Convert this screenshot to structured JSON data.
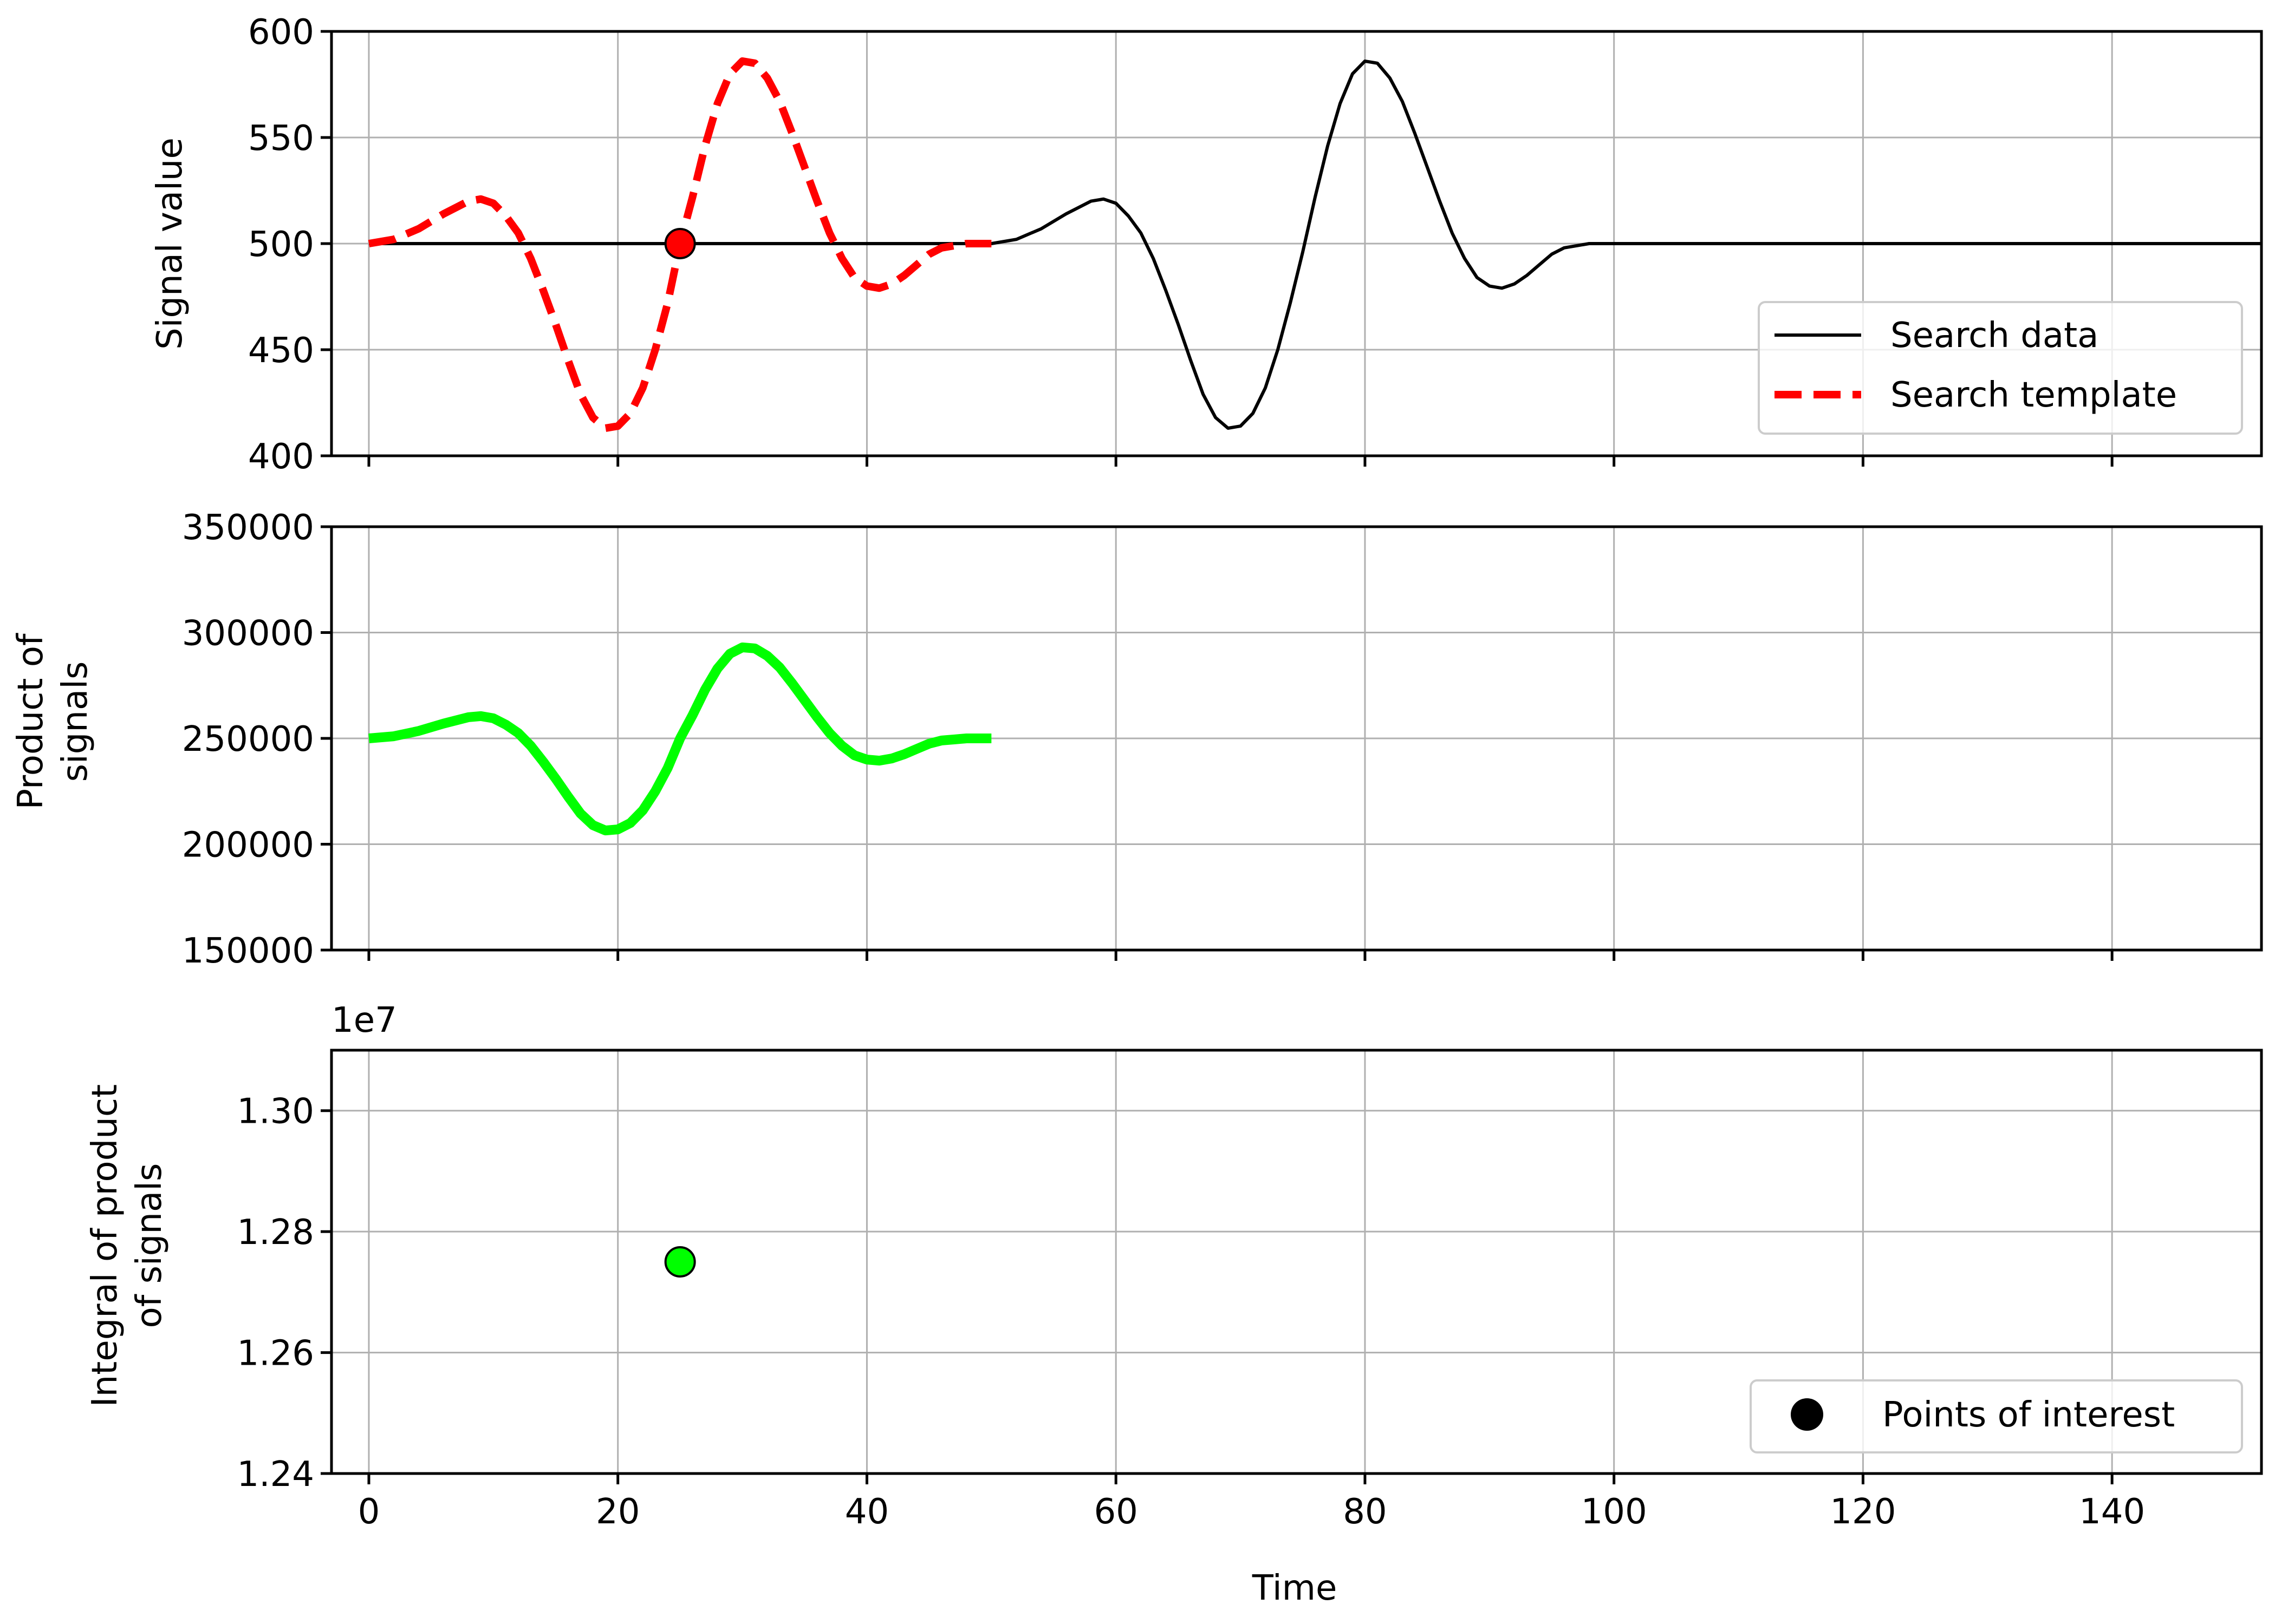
{
  "chart_data": [
    {
      "type": "line",
      "ylabel": "Signal value",
      "xlim": [
        -3,
        152
      ],
      "ylim": [
        400,
        600
      ],
      "yticks": [
        400,
        450,
        500,
        550,
        600
      ],
      "xticks": [
        0,
        20,
        40,
        60,
        80,
        100,
        120,
        140
      ],
      "grid": true,
      "legend_position": "lower-right",
      "series": [
        {
          "name": "Search data",
          "color": "#000000",
          "style": "solid",
          "x": [
            0,
            10,
            20,
            30,
            40,
            45,
            50,
            52,
            54,
            56,
            58,
            59,
            60,
            61,
            62,
            63,
            64,
            65,
            66,
            67,
            68,
            69,
            70,
            71,
            72,
            73,
            74,
            75,
            76,
            77,
            78,
            79,
            80,
            81,
            82,
            83,
            84,
            85,
            86,
            87,
            88,
            89,
            90,
            91,
            92,
            93,
            94,
            95,
            96,
            97,
            98,
            99,
            100,
            110,
            120,
            130,
            140,
            152
          ],
          "y": [
            500,
            500,
            500,
            500,
            500,
            500,
            500,
            502,
            507,
            514,
            520,
            521,
            519,
            513,
            505,
            493,
            478,
            462,
            445,
            429,
            418,
            413,
            414,
            420,
            432,
            450,
            472,
            496,
            522,
            546,
            566,
            580,
            586,
            585,
            578,
            567,
            552,
            536,
            520,
            505,
            493,
            484,
            480,
            479,
            481,
            485,
            490,
            495,
            498,
            499,
            500,
            500,
            500,
            500,
            500,
            500,
            500,
            500
          ]
        },
        {
          "name": "Search template",
          "color": "#ff0000",
          "style": "dashed",
          "x": [
            0,
            2,
            4,
            6,
            8,
            9,
            10,
            11,
            12,
            13,
            14,
            15,
            16,
            17,
            18,
            19,
            20,
            21,
            22,
            23,
            24,
            25,
            26,
            27,
            28,
            29,
            30,
            31,
            32,
            33,
            34,
            35,
            36,
            37,
            38,
            39,
            40,
            41,
            42,
            43,
            44,
            45,
            46,
            47,
            48,
            49,
            50
          ],
          "y": [
            500,
            502,
            507,
            514,
            520,
            521,
            519,
            513,
            505,
            493,
            478,
            462,
            445,
            429,
            418,
            413,
            414,
            420,
            432,
            450,
            472,
            500,
            522,
            546,
            566,
            580,
            586,
            585,
            578,
            567,
            552,
            536,
            520,
            505,
            493,
            484,
            480,
            479,
            481,
            485,
            490,
            495,
            498,
            499,
            500,
            500,
            500
          ]
        }
      ],
      "markers": [
        {
          "x": 25,
          "y": 500,
          "color": "#ff0000",
          "edge": "#000000"
        }
      ]
    },
    {
      "type": "line",
      "ylabel": "Product of signals",
      "xlim": [
        -3,
        152
      ],
      "ylim": [
        150000,
        350000
      ],
      "yticks": [
        150000,
        200000,
        250000,
        300000,
        350000
      ],
      "xticks": [
        0,
        20,
        40,
        60,
        80,
        100,
        120,
        140
      ],
      "grid": true,
      "series": [
        {
          "color": "#00ff00",
          "style": "solid",
          "x": [
            0,
            2,
            4,
            6,
            8,
            9,
            10,
            11,
            12,
            13,
            14,
            15,
            16,
            17,
            18,
            19,
            20,
            21,
            22,
            23,
            24,
            25,
            26,
            27,
            28,
            29,
            30,
            31,
            32,
            33,
            34,
            35,
            36,
            37,
            38,
            39,
            40,
            41,
            42,
            43,
            44,
            45,
            46,
            47,
            48,
            49,
            50
          ],
          "y": [
            250000,
            251000,
            253500,
            257000,
            260000,
            260500,
            259500,
            256500,
            252500,
            246500,
            239000,
            231000,
            222500,
            214500,
            209000,
            206500,
            207000,
            210000,
            216000,
            225000,
            236000,
            250000,
            261000,
            273000,
            283000,
            290000,
            293000,
            292500,
            289000,
            283500,
            276000,
            268000,
            260000,
            252500,
            246500,
            242000,
            240000,
            239500,
            240500,
            242500,
            245000,
            247500,
            249000,
            249500,
            250000,
            250000,
            250000
          ]
        }
      ]
    },
    {
      "type": "scatter",
      "ylabel": "Integral of product of signals",
      "offset_label": "1e7",
      "xlabel": "Time",
      "xlim": [
        -3,
        152
      ],
      "ylim": [
        1.24,
        1.31
      ],
      "yticks": [
        1.24,
        1.26,
        1.28,
        1.3
      ],
      "ytick_labels": [
        "1.24",
        "1.26",
        "1.28",
        "1.30"
      ],
      "xticks": [
        0,
        20,
        40,
        60,
        80,
        100,
        120,
        140
      ],
      "grid": true,
      "legend_position": "lower-right",
      "legend": [
        {
          "name": "Points of interest",
          "color": "#000000",
          "marker": "circle"
        }
      ],
      "points": [
        {
          "x": 25,
          "y": 1.275,
          "color": "#00ff00",
          "edge": "#000000"
        }
      ]
    }
  ],
  "labels": {
    "panel1_ylabel": "Signal value",
    "panel2_ylabel_line1": "Product of",
    "panel2_ylabel_line2": "signals",
    "panel3_ylabel_line1": "Integral of product",
    "panel3_ylabel_line2": "of signals",
    "panel3_offset": "1e7",
    "xlabel": "Time",
    "legend1_item1": "Search data",
    "legend1_item2": "Search template",
    "legend3_item1": "Points of interest"
  }
}
